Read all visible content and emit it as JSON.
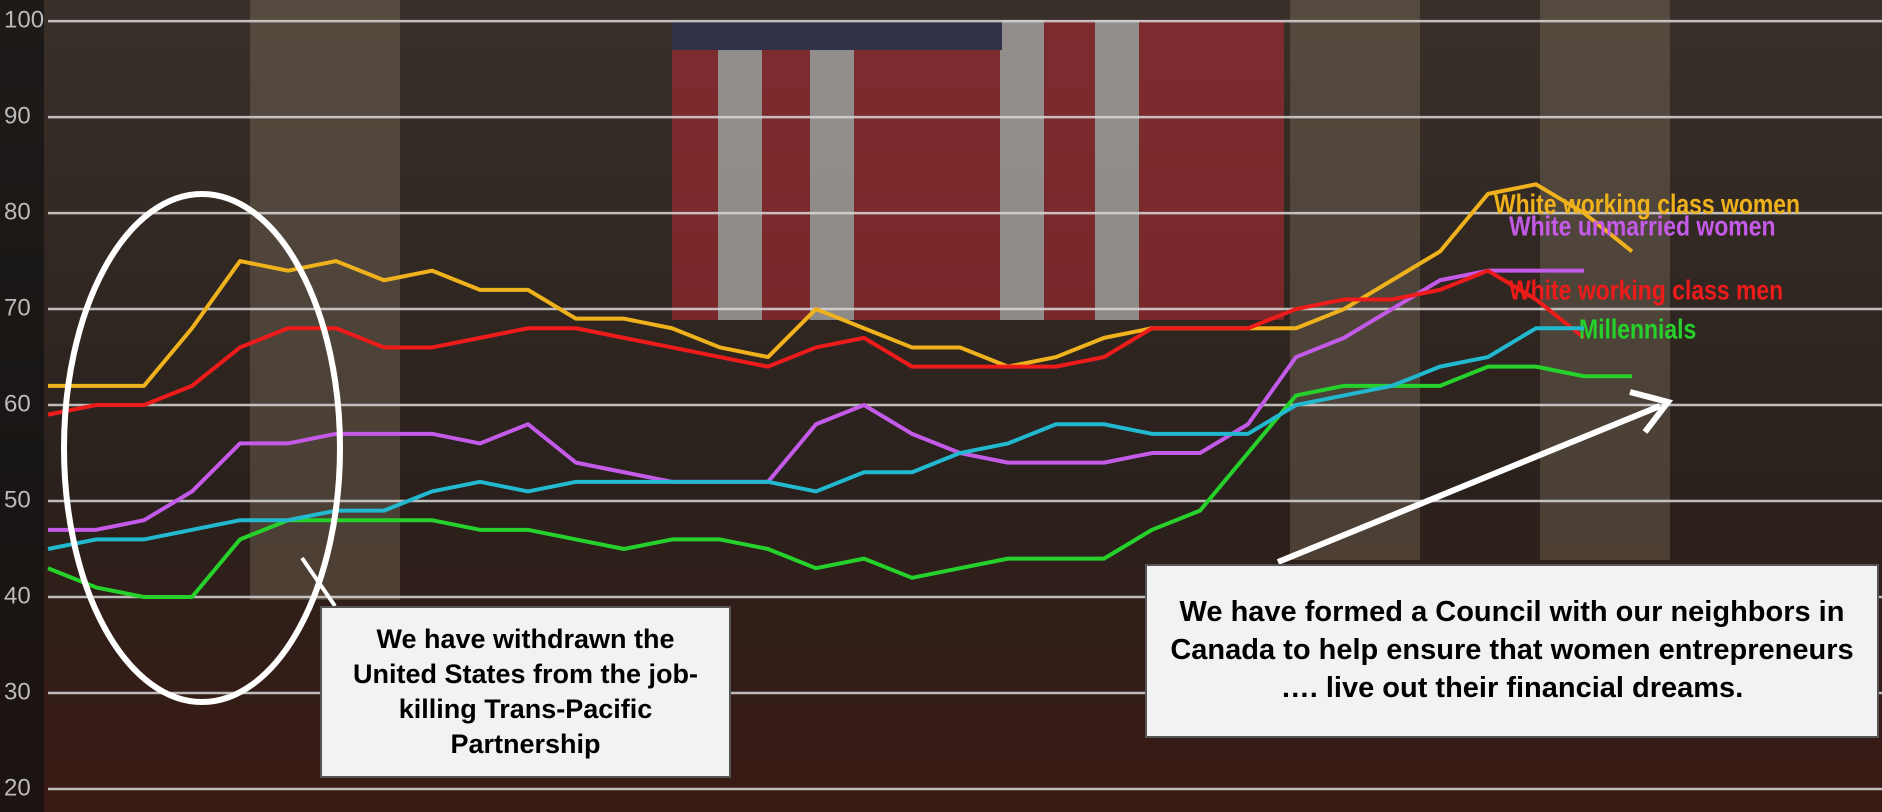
{
  "chart_data": {
    "type": "line",
    "categories": [
      null,
      null,
      null,
      null,
      null,
      null,
      null,
      null,
      null,
      null,
      null,
      null,
      null,
      null,
      null,
      null,
      null,
      null,
      null,
      null,
      null,
      null,
      null,
      null,
      null,
      null,
      null,
      null,
      null,
      null,
      null,
      null,
      null,
      null
    ],
    "ylim": [
      17.6,
      102.2
    ],
    "yticks": [
      20,
      30,
      40,
      50,
      60,
      70,
      80,
      90,
      100
    ],
    "grid": true,
    "series": [
      {
        "name": "White working class women",
        "color": "#f0b21c",
        "values": [
          62,
          62,
          62,
          68,
          75,
          74,
          75,
          73,
          74,
          72,
          72,
          69,
          69,
          68,
          66,
          65,
          70,
          68,
          66,
          66,
          64,
          65,
          67,
          68,
          68,
          68,
          68,
          70,
          73,
          76,
          82,
          83,
          80,
          76
        ]
      },
      {
        "name": "White unmarried women",
        "color": "#c45ae8",
        "values": [
          47,
          47,
          48,
          51,
          56,
          56,
          57,
          57,
          57,
          56,
          58,
          54,
          53,
          52,
          52,
          52,
          58,
          60,
          57,
          55,
          54,
          54,
          54,
          55,
          55,
          58,
          65,
          67,
          70,
          73,
          74,
          74,
          74,
          null
        ]
      },
      {
        "name": "White working class men",
        "color": "#ee1b1b",
        "values": [
          59,
          60,
          60,
          62,
          66,
          68,
          68,
          66,
          66,
          67,
          68,
          68,
          67,
          66,
          65,
          64,
          66,
          67,
          64,
          64,
          64,
          64,
          65,
          68,
          68,
          68,
          70,
          71,
          71,
          72,
          74,
          71,
          67,
          null
        ]
      },
      {
        "name": "Millennials",
        "color": "#25d12a",
        "values": [
          43,
          41,
          40,
          40,
          46,
          48,
          48,
          48,
          48,
          47,
          47,
          46,
          45,
          46,
          46,
          45,
          43,
          44,
          42,
          43,
          44,
          44,
          44,
          47,
          49,
          55,
          61,
          62,
          62,
          62,
          64,
          64,
          63,
          63
        ]
      },
      {
        "color": "#22b8d0",
        "values": [
          45,
          46,
          46,
          47,
          48,
          48,
          49,
          49,
          51,
          52,
          51,
          52,
          52,
          52,
          52,
          52,
          51,
          53,
          53,
          55,
          56,
          58,
          58,
          57,
          57,
          57,
          60,
          61,
          62,
          64,
          65,
          68,
          68,
          null
        ]
      }
    ],
    "annotations": [
      "We have withdrawn the United States from the job-killing Trans-Pacific Partnership",
      "We have formed a Council with our neighbors in Canada to help ensure that women entrepreneurs …. live out their financial dreams."
    ]
  }
}
